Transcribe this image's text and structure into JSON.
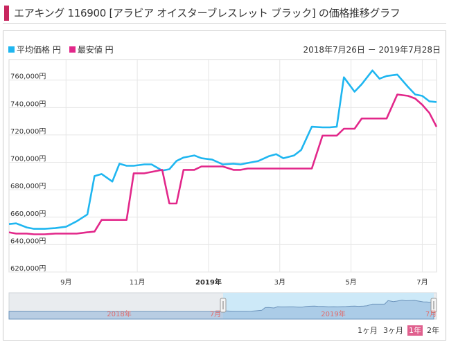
{
  "title": "エアキング 116900 [アラビア オイスターブレスレット ブラック] の価格推移グラフ",
  "legend": {
    "avg_label": "平均価格 円",
    "min_label": "最安値 円"
  },
  "date_range": "2018年7月26日 － 2019年7月28日",
  "colors": {
    "avg": "#1fb6f0",
    "min": "#e2278a",
    "title_mark": "#c8265f"
  },
  "range_buttons": [
    {
      "label": "1ヶ月",
      "active": false
    },
    {
      "label": "3ヶ月",
      "active": false
    },
    {
      "label": "1年",
      "active": true
    },
    {
      "label": "2年",
      "active": false
    }
  ],
  "navigator": {
    "labels": [
      "2018年",
      "7月",
      "2019年",
      "7月"
    ]
  },
  "chart_data": {
    "type": "line",
    "title": "",
    "ylim": [
      620000,
      775000
    ],
    "y_ticks": [
      "620,000円",
      "640,000円",
      "660,000円",
      "680,000円",
      "700,000円",
      "720,000円",
      "740,000円",
      "760,000円"
    ],
    "x_ticks": [
      "9月",
      "11月",
      "2019年",
      "3月",
      "5月",
      "7月"
    ],
    "x_tick_pos": [
      1.2,
      3.2,
      5.2,
      7.2,
      9.2,
      11.2
    ],
    "x_range": [
      -0.4,
      11.6
    ],
    "series": [
      {
        "name": "平均価格 円",
        "x": [
          -0.4,
          -0.2,
          0.1,
          0.3,
          0.6,
          0.9,
          1.2,
          1.5,
          1.8,
          2.0,
          2.2,
          2.5,
          2.7,
          2.9,
          3.1,
          3.4,
          3.6,
          3.9,
          4.1,
          4.3,
          4.5,
          4.8,
          5.0,
          5.3,
          5.6,
          5.9,
          6.1,
          6.3,
          6.6,
          6.9,
          7.1,
          7.3,
          7.6,
          7.8,
          8.1,
          8.4,
          8.6,
          8.8,
          9.0,
          9.3,
          9.5,
          9.8,
          10.0,
          10.2,
          10.5,
          10.8,
          11.0,
          11.2,
          11.4,
          11.6
        ],
        "values": [
          655000,
          655500,
          652500,
          651500,
          651500,
          652000,
          653000,
          657000,
          662000,
          690000,
          691500,
          686000,
          699000,
          697500,
          697500,
          698500,
          698500,
          694000,
          695000,
          701000,
          703500,
          705000,
          703000,
          702000,
          698500,
          699000,
          698500,
          699500,
          701000,
          704500,
          706000,
          703000,
          705000,
          709000,
          726000,
          725500,
          725500,
          726000,
          762000,
          751500,
          757000,
          767000,
          761000,
          763000,
          764000,
          755000,
          749500,
          748500,
          744500,
          744000
        ]
      },
      {
        "name": "最安値 円",
        "x": [
          -0.4,
          -0.2,
          0.1,
          0.3,
          0.6,
          0.9,
          1.2,
          1.5,
          1.8,
          2.0,
          2.2,
          2.5,
          2.7,
          2.9,
          3.1,
          3.4,
          3.6,
          3.9,
          4.1,
          4.3,
          4.5,
          4.8,
          5.0,
          5.3,
          5.6,
          5.9,
          6.1,
          6.3,
          6.6,
          6.9,
          7.1,
          7.3,
          7.6,
          7.8,
          8.1,
          8.4,
          8.6,
          8.8,
          9.0,
          9.3,
          9.5,
          9.8,
          10.0,
          10.2,
          10.5,
          10.8,
          11.0,
          11.2,
          11.4,
          11.6
        ],
        "values": [
          649000,
          648000,
          648000,
          647500,
          647500,
          648000,
          648000,
          648000,
          649000,
          649500,
          658000,
          658000,
          658000,
          658000,
          692000,
          692000,
          693000,
          694500,
          670000,
          670000,
          694500,
          694500,
          697000,
          697000,
          697000,
          694500,
          694500,
          695500,
          695500,
          695500,
          695500,
          695500,
          695500,
          695500,
          695500,
          719500,
          719500,
          719500,
          724500,
          724500,
          732000,
          732000,
          732000,
          732000,
          749500,
          748500,
          746500,
          742000,
          736000,
          726000
        ]
      }
    ]
  }
}
